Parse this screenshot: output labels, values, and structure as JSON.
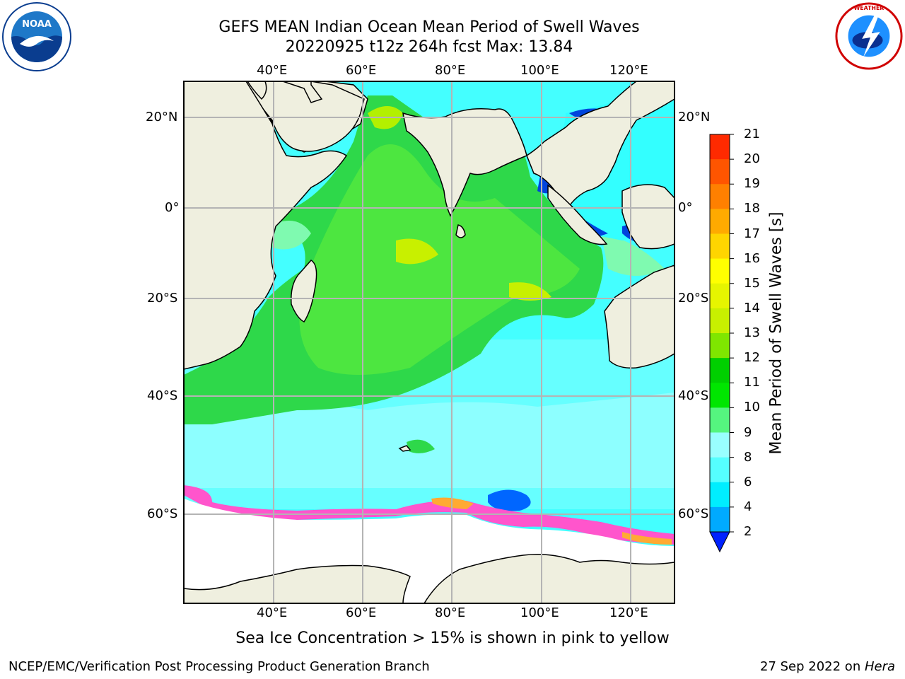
{
  "title_line1": "GEFS MEAN Indian Ocean Mean Period of Swell Waves",
  "title_line2": "20220925 t12z 264h fcst   Max: 13.84",
  "lon_labels": [
    "40°E",
    "60°E",
    "80°E",
    "100°E",
    "120°E"
  ],
  "lat_labels": [
    "20°N",
    "0°",
    "20°S",
    "40°S",
    "60°S"
  ],
  "colorbar": {
    "label": "Mean Period of Swell Waves [s]",
    "ticks": [
      "21",
      "20",
      "19",
      "18",
      "17",
      "16",
      "15",
      "14",
      "13",
      "12",
      "11",
      "10",
      "9",
      "8",
      "6",
      "4",
      "2"
    ],
    "colors": [
      "#ff0000",
      "#ff2a00",
      "#ff5500",
      "#ff8000",
      "#ffaa00",
      "#ffd500",
      "#ffff00",
      "#e6f500",
      "#c8f000",
      "#7fe600",
      "#00d000",
      "#00e600",
      "#55f57f",
      "#99ffff",
      "#55ffff",
      "#00eeff",
      "#00aaff",
      "#0066ff"
    ]
  },
  "note": "Sea Ice Concentration > 15% is shown in pink to yellow",
  "footer_left": "NCEP/EMC/Verification Post Processing Product Generation Branch",
  "footer_right_prefix": "27 Sep 2022 on ",
  "footer_right_host": "Hera",
  "logos": [
    "noaa-logo",
    "national-weather-service-logo"
  ]
}
